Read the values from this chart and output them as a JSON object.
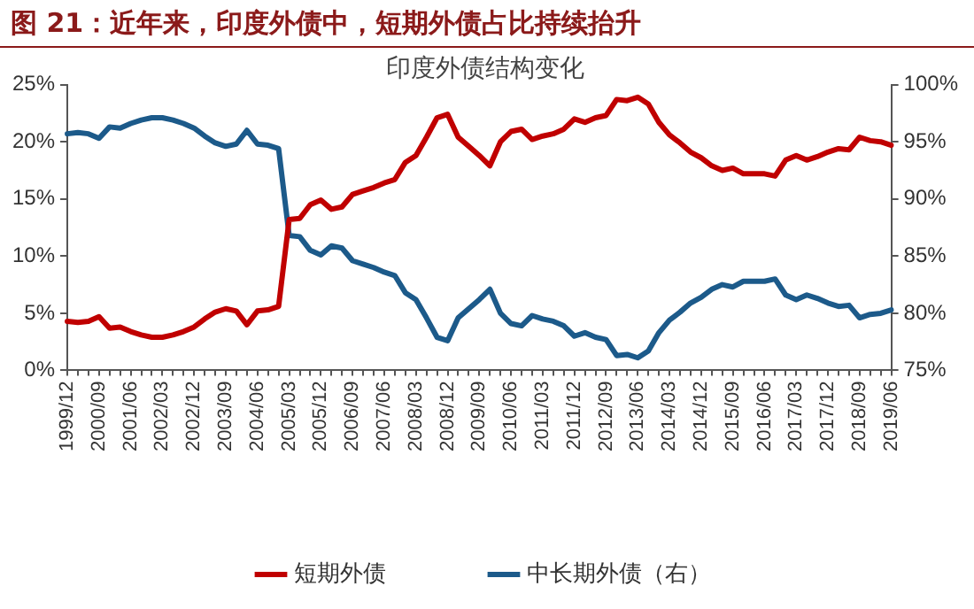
{
  "chart_data": {
    "type": "line",
    "title": "图 21：近年来，印度外债中，短期外债占比持续抬升",
    "subtitle": "印度外债结构变化",
    "categories": [
      "1999/12",
      null,
      null,
      "2000/09",
      null,
      null,
      "2001/06",
      null,
      null,
      "2002/03",
      null,
      null,
      "2002/12",
      null,
      null,
      "2003/09",
      null,
      null,
      "2004/06",
      null,
      null,
      "2005/03",
      null,
      null,
      "2005/12",
      null,
      null,
      "2006/09",
      null,
      null,
      "2007/06",
      null,
      null,
      "2008/03",
      null,
      null,
      "2008/12",
      null,
      null,
      "2009/09",
      null,
      null,
      "2010/06",
      null,
      null,
      "2011/03",
      null,
      null,
      "2011/12",
      null,
      null,
      "2012/09",
      null,
      null,
      "2013/06",
      null,
      null,
      "2014/03",
      null,
      null,
      "2014/12",
      null,
      null,
      "2015/09",
      null,
      null,
      "2016/06",
      null,
      null,
      "2017/03",
      null,
      null,
      "2017/12",
      null,
      null,
      "2018/09",
      null,
      null,
      "2019/06"
    ],
    "series": [
      {
        "name": "短期外债",
        "color": "#c00000",
        "values": [
          4.3,
          4.2,
          4.3,
          4.7,
          3.7,
          3.8,
          3.4,
          3.1,
          2.9,
          2.9,
          3.1,
          3.4,
          3.8,
          4.5,
          5.1,
          5.4,
          5.2,
          4.0,
          5.2,
          5.3,
          5.6,
          13.2,
          13.3,
          14.5,
          14.9,
          14.1,
          14.3,
          15.4,
          15.7,
          16.0,
          16.4,
          16.7,
          18.2,
          18.8,
          20.4,
          22.1,
          22.4,
          20.4,
          19.6,
          18.8,
          17.9,
          20.0,
          20.9,
          21.1,
          20.2,
          20.5,
          20.7,
          21.1,
          22.0,
          21.7,
          22.1,
          22.3,
          23.7,
          23.6,
          23.9,
          23.3,
          21.7,
          20.6,
          19.9,
          19.1,
          18.6,
          17.9,
          17.5,
          17.7,
          17.2,
          17.2,
          17.2,
          17.0,
          18.4,
          18.8,
          18.4,
          18.7,
          19.1,
          19.4,
          19.3,
          20.4,
          20.1,
          20.0,
          19.7
        ]
      },
      {
        "name": "中长期外债（右）",
        "color": "#1c5a8a",
        "axis": "y2",
        "values": [
          95.7,
          95.8,
          95.7,
          95.3,
          96.3,
          96.2,
          96.6,
          96.9,
          97.1,
          97.1,
          96.9,
          96.6,
          96.2,
          95.5,
          94.9,
          94.6,
          94.8,
          96.0,
          94.8,
          94.7,
          94.4,
          86.8,
          86.7,
          85.5,
          85.1,
          85.9,
          85.7,
          84.6,
          84.3,
          84.0,
          83.6,
          83.3,
          81.8,
          81.2,
          79.6,
          77.9,
          77.6,
          79.6,
          80.4,
          81.2,
          82.1,
          80.0,
          79.1,
          78.9,
          79.8,
          79.5,
          79.3,
          78.9,
          78.0,
          78.3,
          77.9,
          77.7,
          76.3,
          76.4,
          76.1,
          76.7,
          78.3,
          79.4,
          80.1,
          80.9,
          81.4,
          82.1,
          82.5,
          82.3,
          82.8,
          82.8,
          82.8,
          83.0,
          81.6,
          81.2,
          81.6,
          81.3,
          80.9,
          80.6,
          80.7,
          79.6,
          79.9,
          80.0,
          80.3
        ]
      }
    ],
    "ylim": [
      0,
      25
    ],
    "yticks": [
      {
        "value": 0,
        "label": "0%"
      },
      {
        "value": 5,
        "label": "5%"
      },
      {
        "value": 10,
        "label": "10%"
      },
      {
        "value": 15,
        "label": "15%"
      },
      {
        "value": 20,
        "label": "20%"
      },
      {
        "value": 25,
        "label": "25%"
      }
    ],
    "y2lim": [
      75,
      100
    ],
    "y2ticks": [
      {
        "value": 75,
        "label": "75%"
      },
      {
        "value": 80,
        "label": "80%"
      },
      {
        "value": 85,
        "label": "85%"
      },
      {
        "value": 90,
        "label": "90%"
      },
      {
        "value": 95,
        "label": "95%"
      },
      {
        "value": 100,
        "label": "100%"
      }
    ],
    "grid": false,
    "legend": "bottom",
    "marker": "none",
    "line_style": "solid"
  }
}
